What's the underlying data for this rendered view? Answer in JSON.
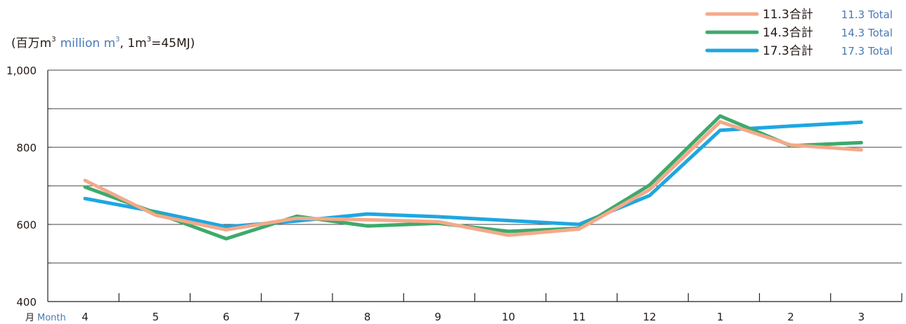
{
  "chart_data": {
    "type": "line",
    "unit_label": {
      "jp": "(百万m",
      "jp_sup": "3",
      "en": "million m",
      "en_sup": "3",
      "conv_a": ", 1m",
      "conv_sup": "3",
      "conv_b": "=45MJ)"
    },
    "x_label": {
      "jp": "月",
      "en": "Month"
    },
    "categories": [
      "4",
      "5",
      "6",
      "7",
      "8",
      "9",
      "10",
      "11",
      "12",
      "1",
      "2",
      "3"
    ],
    "ylim": [
      400,
      1000
    ],
    "y_ticks": [
      "400",
      "600",
      "800",
      "1,000"
    ],
    "grid_values": [
      500,
      600,
      700,
      800,
      900
    ],
    "legend_position": "top-right",
    "series": [
      {
        "name": "11.3合計",
        "name_en": "11.3 Total",
        "color": "#f4a98a",
        "values": [
          714,
          624,
          586,
          616,
          612,
          607,
          572,
          588,
          690,
          866,
          806,
          793
        ]
      },
      {
        "name": "14.3合計",
        "name_en": "14.3 Total",
        "color": "#3daa6c",
        "values": [
          697,
          630,
          563,
          621,
          596,
          603,
          582,
          590,
          702,
          881,
          804,
          812
        ]
      },
      {
        "name": "17.3合計",
        "name_en": "17.3 Total",
        "color": "#1ea7e1",
        "values": [
          667,
          633,
          594,
          609,
          627,
          620,
          610,
          600,
          675,
          844,
          855,
          865
        ]
      }
    ]
  }
}
